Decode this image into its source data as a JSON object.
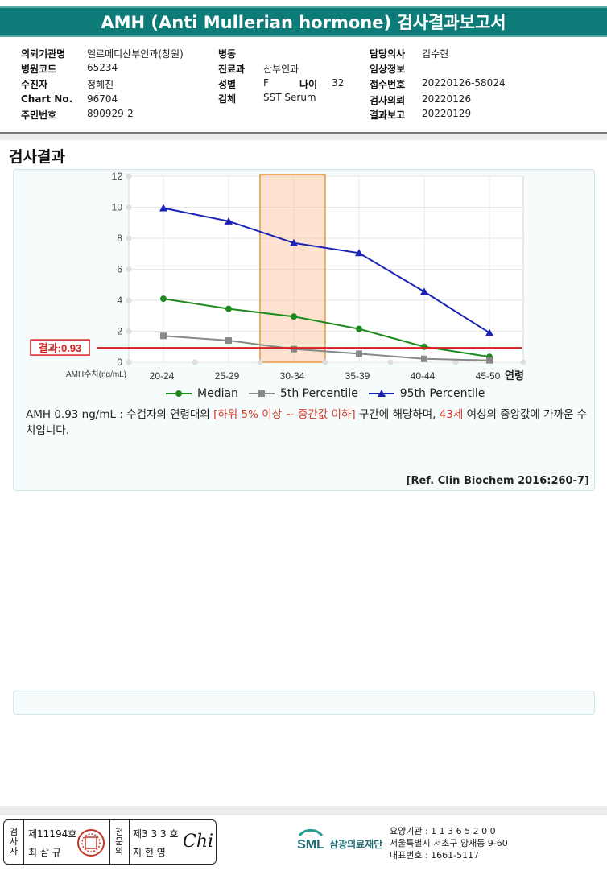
{
  "title": "AMH (Anti Mullerian hormone) 검사결과보고서",
  "info": {
    "hospital_label": "의뢰기관명",
    "hospital": "엘르메디산부인과(창원)",
    "hospital_code_label": "병원코드",
    "hospital_code": "65234",
    "patient_label": "수진자",
    "patient": "정혜진",
    "chart_label": "Chart No.",
    "chart": "96704",
    "id_label": "주민번호",
    "id": "890929-2",
    "ward_label": "병동",
    "ward": "",
    "dept_label": "진료과",
    "dept": "산부인과",
    "sex_label": "성별",
    "sex": "F",
    "age_label": "나이",
    "age": "32",
    "specimen_label": "검체",
    "specimen": "SST Serum",
    "doctor_label": "담당의사",
    "doctor": "김수현",
    "clinical_label": "임상정보",
    "clinical": "",
    "receipt_label": "접수번호",
    "receipt": "20220126-58024",
    "request_label": "검사의뢰",
    "request": "20220126",
    "report_label": "결과보고",
    "report": "20220129"
  },
  "section_title": "검사결과",
  "chart_data": {
    "type": "line",
    "categories": [
      "20-24",
      "25-29",
      "30-34",
      "35-39",
      "40-44",
      "45-50"
    ],
    "ylim": [
      0,
      12
    ],
    "yticks": [
      "0",
      "2",
      "4",
      "6",
      "8",
      "10",
      "12"
    ],
    "ylabel": "AMH수치(ng/mL)",
    "xlabel": "연령",
    "highlight_category": "30-34",
    "result_line": {
      "value": 0.93,
      "label": "결과:0.93"
    },
    "series": [
      {
        "name": "Median",
        "values": [
          4.1,
          3.45,
          2.95,
          2.15,
          1.0,
          0.35
        ],
        "color": "#1e8a1e",
        "marker": "circle"
      },
      {
        "name": "5th Percentile",
        "values": [
          1.7,
          1.4,
          0.85,
          0.55,
          0.22,
          0.12
        ],
        "color": "#888888",
        "marker": "square"
      },
      {
        "name": "95th Percentile",
        "values": [
          9.95,
          9.1,
          7.7,
          7.05,
          4.55,
          1.9
        ],
        "color": "#1a23b5",
        "marker": "triangle"
      }
    ]
  },
  "comment": {
    "prefix": "AMH  0.93 ng/mL : 수검자의 연령대의 ",
    "range": "[하위 5% 이상 ~ 중간값 이하]",
    "middle": "  구간에 해당하며, ",
    "age_group": "43세",
    "suffix": " 여성의 중앙값에 가까운 수치입니다."
  },
  "reference": "[Ref. Clin Biochem 2016:260-7]",
  "signature": {
    "inspector_label": "검사자",
    "inspector_no": "제11194호",
    "inspector_name": "최 삼 규",
    "specialist_label": "전문의",
    "specialist_no": "제3 3 3 호",
    "specialist_name": "지 현 영",
    "signature_mark": "Chi"
  },
  "footer": {
    "logo": "SML",
    "org": "삼광의료재단",
    "code": "요양기관 : 1 1 3 6 5 2 0 0",
    "address": "서울특별시 서초구 양재동 9-60",
    "phone": "대표번호 : 1661-5117"
  }
}
